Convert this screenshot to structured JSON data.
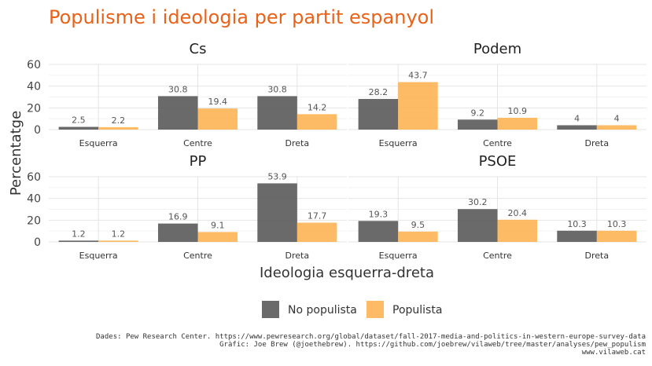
{
  "title": "Populisme i ideologia per partit espanyol",
  "chart_data": {
    "type": "bar",
    "xlabel": "Ideologia esquerra-dreta",
    "ylabel": "Percentatge",
    "ylim": [
      0,
      60
    ],
    "yticks": [
      0,
      20,
      40,
      60
    ],
    "categories": [
      "Esquerra",
      "Centre",
      "Dreta"
    ],
    "series_names": [
      "No populista",
      "Populista"
    ],
    "colors": {
      "No populista": "#555555",
      "Populista": "#fdaf4a"
    },
    "legend_position": "bottom",
    "grid": true,
    "facets": [
      {
        "name": "Cs",
        "values": {
          "No populista": [
            2.5,
            30.8,
            30.8
          ],
          "Populista": [
            2.2,
            19.4,
            14.2
          ]
        }
      },
      {
        "name": "Podem",
        "values": {
          "No populista": [
            28.2,
            9.2,
            4
          ],
          "Populista": [
            43.7,
            10.9,
            4
          ]
        }
      },
      {
        "name": "PP",
        "values": {
          "No populista": [
            1.2,
            16.9,
            53.9
          ],
          "Populista": [
            1.2,
            9.1,
            17.7
          ]
        }
      },
      {
        "name": "PSOE",
        "values": {
          "No populista": [
            19.3,
            30.2,
            10.3
          ],
          "Populista": [
            9.5,
            20.4,
            10.3
          ]
        }
      }
    ]
  },
  "caption": [
    "Dades: Pew Research Center. https://www.pewresearch.org/global/dataset/fall-2017-media-and-politics-in-western-europe-survey-data",
    "Gràfic: Joe Brew (@joethebrew). https://github.com/joebrew/vilaweb/tree/master/analyses/pew_populism",
    "www.vilaweb.cat"
  ]
}
